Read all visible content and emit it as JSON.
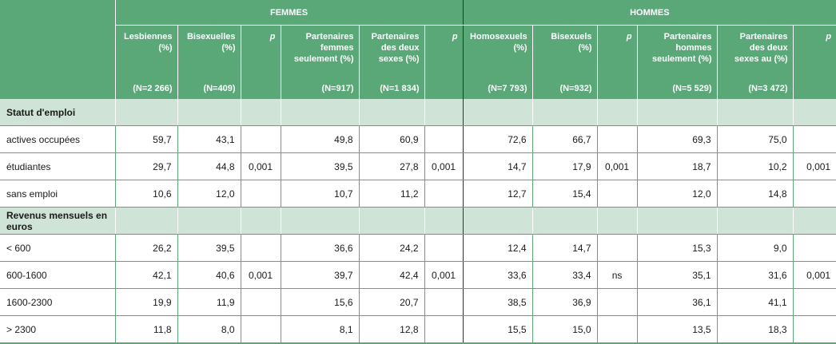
{
  "header": {
    "group_femmes": "FEMMES",
    "group_hommes": "HOMMES",
    "columns": [
      {
        "l1": "Lesbiennes",
        "l2": "(%)",
        "l3": "",
        "n": "(N=2 266)"
      },
      {
        "l1": "Bisexuelles",
        "l2": "(%)",
        "l3": "",
        "n": "(N=409)"
      },
      {
        "l1": "p",
        "l2": "",
        "l3": "",
        "n": ""
      },
      {
        "l1": "Partenaires",
        "l2": "femmes",
        "l3": "seulement (%)",
        "n": "(N=917)"
      },
      {
        "l1": "Partenaires",
        "l2": "des deux",
        "l3": "sexes (%)",
        "n": "(N=1 834)"
      },
      {
        "l1": "p",
        "l2": "",
        "l3": "",
        "n": ""
      },
      {
        "l1": "Homosexuels",
        "l2": "(%)",
        "l3": "",
        "n": "(N=7 793)"
      },
      {
        "l1": "Bisexuels",
        "l2": "(%)",
        "l3": "",
        "n": "(N=932)"
      },
      {
        "l1": "p",
        "l2": "",
        "l3": "",
        "n": ""
      },
      {
        "l1": "Partenaires",
        "l2": "hommes",
        "l3": "seulement (%)",
        "n": "(N=5 529)"
      },
      {
        "l1": "Partenaires",
        "l2": "des deux",
        "l3": "sexes au (%)",
        "n": "(N=3 472)"
      },
      {
        "l1": "p",
        "l2": "",
        "l3": "",
        "n": ""
      }
    ]
  },
  "sections": [
    {
      "title": "Statut d'emploi",
      "rows": [
        {
          "label": "actives occupées",
          "cells": [
            "59,7",
            "43,1",
            "",
            "49,8",
            "60,9",
            "",
            "72,6",
            "66,7",
            "",
            "69,3",
            "75,0",
            ""
          ]
        },
        {
          "label": "étudiantes",
          "cells": [
            "29,7",
            "44,8",
            "0,001",
            "39,5",
            "27,8",
            "0,001",
            "14,7",
            "17,9",
            "0,001",
            "18,7",
            "10,2",
            "0,001"
          ]
        },
        {
          "label": "sans emploi",
          "cells": [
            "10,6",
            "12,0",
            "",
            "10,7",
            "11,2",
            "",
            "12,7",
            "15,4",
            "",
            "12,0",
            "14,8",
            ""
          ]
        }
      ]
    },
    {
      "title": "Revenus mensuels en euros",
      "rows": [
        {
          "label": "< 600",
          "cells": [
            "26,2",
            "39,5",
            "",
            "36,6",
            "24,2",
            "",
            "12,4",
            "14,7",
            "",
            "15,3",
            "9,0",
            ""
          ]
        },
        {
          "label": "600-1600",
          "cells": [
            "42,1",
            "40,6",
            "0,001",
            "39,7",
            "42,4",
            "0,001",
            "33,6",
            "33,4",
            "ns",
            "35,1",
            "31,6",
            "0,001"
          ]
        },
        {
          "label": "1600-2300",
          "cells": [
            "19,9",
            "11,9",
            "",
            "15,6",
            "20,7",
            "",
            "38,5",
            "36,9",
            "",
            "36,1",
            "41,1",
            ""
          ]
        },
        {
          "label": "> 2300",
          "cells": [
            "11,8",
            "8,0",
            "",
            "8,1",
            "12,8",
            "",
            "15,5",
            "15,0",
            "",
            "13,5",
            "18,3",
            ""
          ]
        }
      ]
    }
  ]
}
